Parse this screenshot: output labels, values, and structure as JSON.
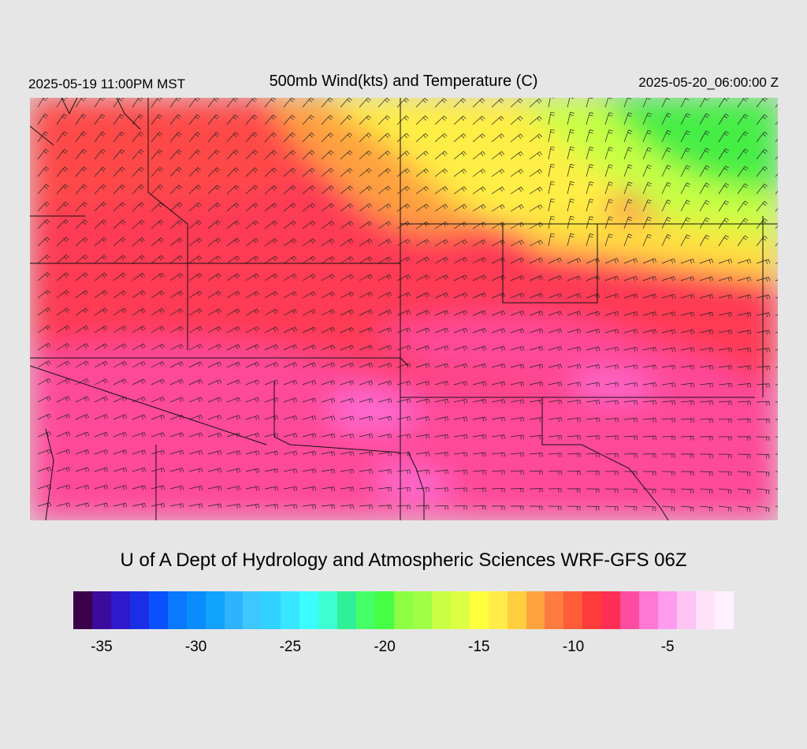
{
  "header": {
    "valid_local": "2025-05-19 11:00PM MST",
    "title": "500mb Wind(kts) and Temperature (C)",
    "valid_utc": "2025-05-20_06:00:00 Z"
  },
  "map": {
    "field": "500mb temperature (C) with wind barbs (kts)",
    "background_color": "#d6d6d6",
    "dominant_temperature_regions": [
      {
        "area": "southwest",
        "approx_temp_c": -8,
        "color": "#ff4499"
      },
      {
        "area": "central band",
        "approx_temp_c": -11,
        "color": "#ff3355"
      },
      {
        "area": "northwest",
        "approx_temp_c": -12,
        "color": "#ff4444"
      },
      {
        "area": "north central",
        "approx_temp_c": -14,
        "color": "#ffa040"
      },
      {
        "area": "north",
        "approx_temp_c": -16,
        "color": "#ffee44"
      },
      {
        "area": "northeast",
        "approx_temp_c": -20,
        "color": "#44ee44"
      }
    ]
  },
  "footer": {
    "credit": "U of A Dept of Hydrology and Atmospheric Sciences WRF-GFS 06Z"
  },
  "colorbar": {
    "colors": [
      "#3a0048",
      "#3c0a9c",
      "#2e1acc",
      "#1a2ee6",
      "#0a50ff",
      "#0a78ff",
      "#0a8cff",
      "#12a2ff",
      "#2cb4ff",
      "#3cc8ff",
      "#30d2ff",
      "#38e6ff",
      "#3cfcff",
      "#3cffd2",
      "#2ff096",
      "#44ff66",
      "#44ff44",
      "#8cff44",
      "#a0ff44",
      "#c8ff44",
      "#dcff44",
      "#ffff3c",
      "#ffec4a",
      "#ffcf3d",
      "#ffa23e",
      "#ff7c3e",
      "#ff5c3a",
      "#ff3a3a",
      "#ff2e55",
      "#ff4ca0",
      "#ff78d2",
      "#ff9cf0",
      "#ffc4f4",
      "#ffe2fa",
      "#fff0ff"
    ],
    "tick_labels": [
      "-35",
      "-30",
      "-25",
      "-20",
      "-15",
      "-10",
      "-5"
    ],
    "tick_values": [
      -35,
      -30,
      -25,
      -20,
      -15,
      -10,
      -5
    ],
    "range": [
      -36.5,
      -1.5
    ]
  }
}
